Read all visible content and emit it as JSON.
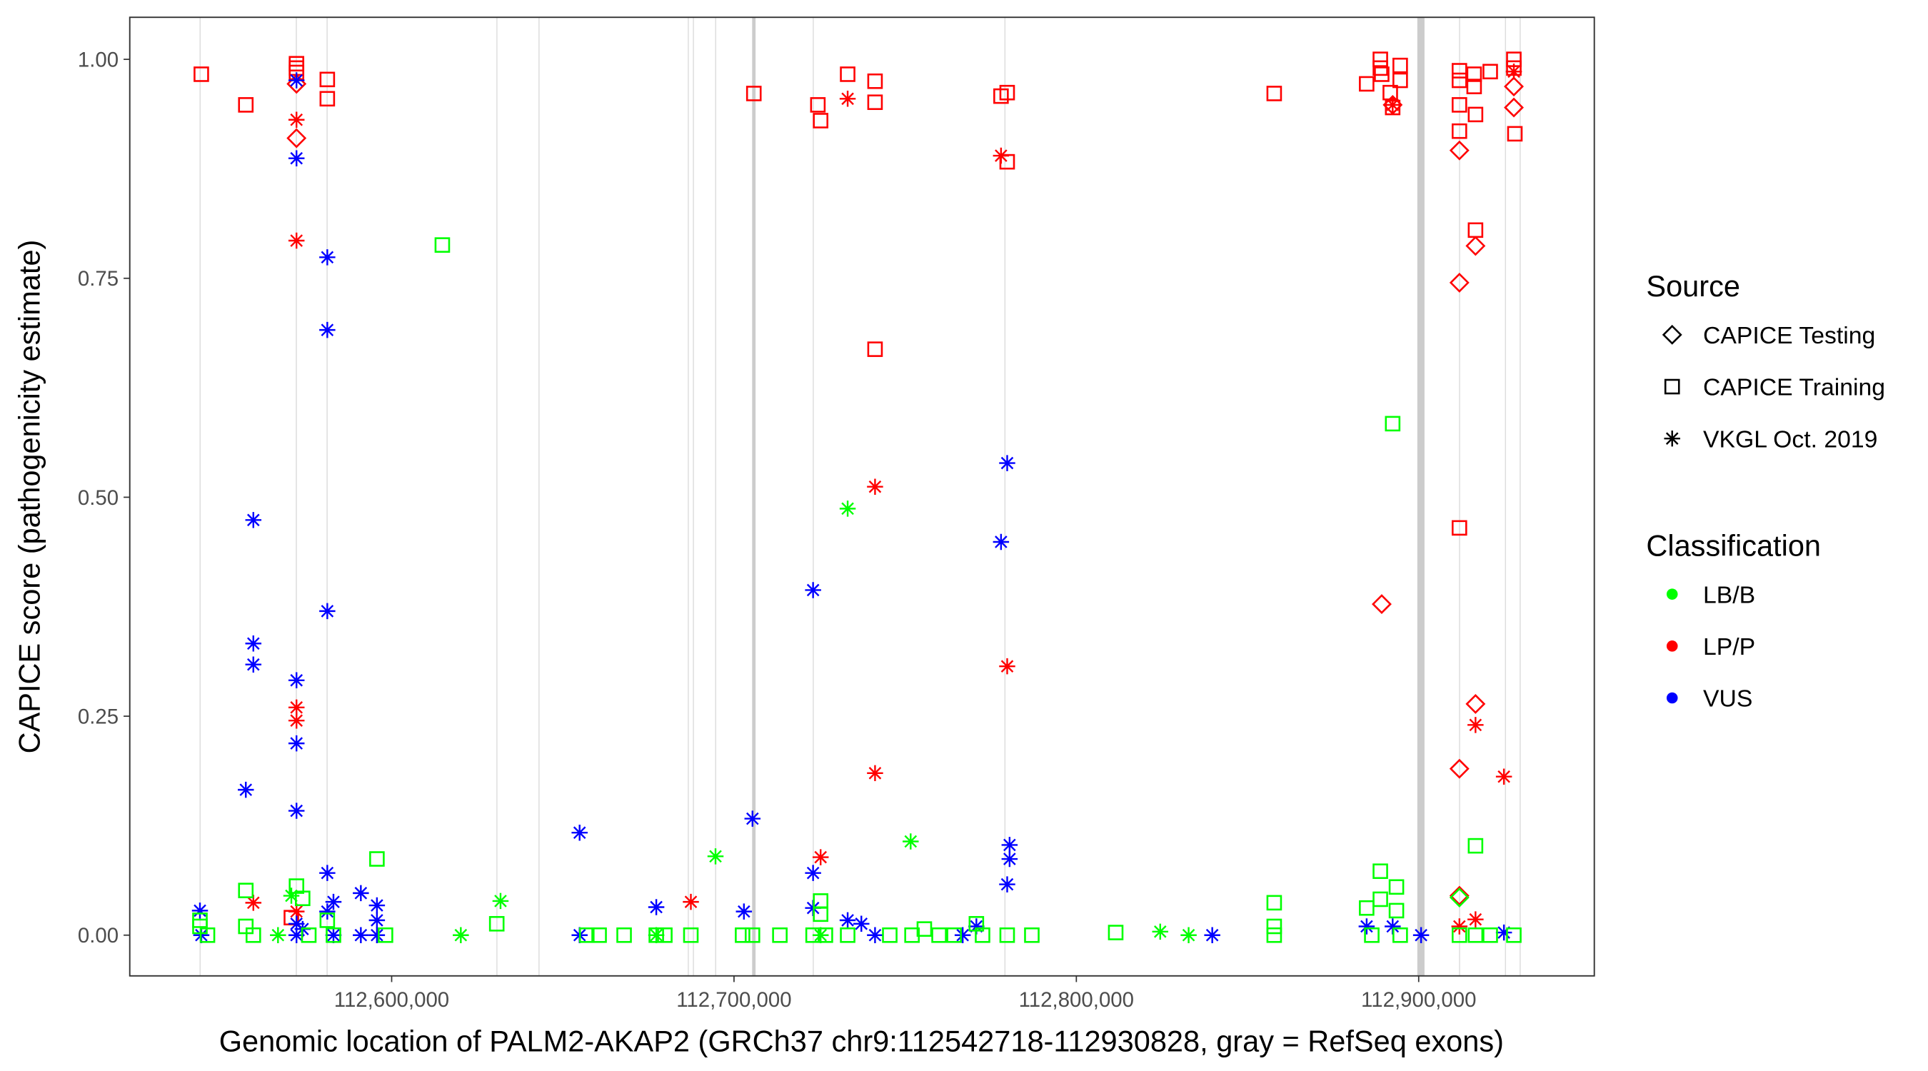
{
  "chart_data": {
    "type": "scatter",
    "xlabel": "Genomic location of PALM2-AKAP2 (GRCh37 chr9:112542718-112930828, gray = RefSeq exons)",
    "ylabel": "CAPICE score (pathogenicity estimate)",
    "xlim": [
      112523500,
      112951300
    ],
    "ylim": [
      -0.0465,
      1.048
    ],
    "x_ticks": [
      112600000,
      112700000,
      112800000,
      112900000
    ],
    "x_tick_labels": [
      "112,600,000",
      "112,700,000",
      "112,800,000",
      "112,900,000"
    ],
    "y_ticks": [
      0,
      0.25,
      0.5,
      0.75,
      1
    ],
    "y_tick_labels": [
      "0.00",
      "0.25",
      "0.50",
      "0.75",
      "1.00"
    ],
    "grid": false,
    "legend_placement": "right",
    "legend": {
      "source_title": "Source",
      "sources": [
        {
          "code": "T",
          "label": "CAPICE Testing",
          "shape": "diamond"
        },
        {
          "code": "R",
          "label": "CAPICE Training",
          "shape": "square"
        },
        {
          "code": "V",
          "label": "VKGL Oct. 2019",
          "shape": "asterisk"
        }
      ],
      "class_title": "Classification",
      "classes": [
        {
          "code": "B",
          "label": "LB/B",
          "color": "#00ff00"
        },
        {
          "code": "P",
          "label": "LP/P",
          "color": "#ff0000"
        },
        {
          "code": "U",
          "label": "VUS",
          "color": "#0000ff"
        }
      ]
    },
    "exons": [
      [
        112543900,
        112544200
      ],
      [
        112572000,
        112572300
      ],
      [
        112581000,
        112581300
      ],
      [
        112630600,
        112630800
      ],
      [
        112642900,
        112643100
      ],
      [
        112686500,
        112686700
      ],
      [
        112688000,
        112688200
      ],
      [
        112694500,
        112694700
      ],
      [
        112705300,
        112706300
      ],
      [
        112723000,
        112723200
      ],
      [
        112779000,
        112779200
      ],
      [
        112899600,
        112901700
      ],
      [
        112911800,
        112912000
      ],
      [
        112925200,
        112925400
      ],
      [
        112929500,
        112929700
      ]
    ],
    "points": [
      [
        112544400,
        0.983,
        "R",
        "P"
      ],
      [
        112557400,
        0.948,
        "R",
        "P"
      ],
      [
        112572200,
        0.99,
        "R",
        "P"
      ],
      [
        112572200,
        0.995,
        "R",
        "P"
      ],
      [
        112572200,
        0.985,
        "R",
        "P"
      ],
      [
        112581200,
        0.977,
        "R",
        "P"
      ],
      [
        112581200,
        0.955,
        "R",
        "P"
      ],
      [
        112705800,
        0.961,
        "R",
        "P"
      ],
      [
        112724500,
        0.948,
        "R",
        "P"
      ],
      [
        112725300,
        0.93,
        "R",
        "P"
      ],
      [
        112733200,
        0.983,
        "R",
        "P"
      ],
      [
        112741200,
        0.975,
        "R",
        "P"
      ],
      [
        112741200,
        0.951,
        "R",
        "P"
      ],
      [
        112741200,
        0.669,
        "R",
        "P"
      ],
      [
        112778000,
        0.958,
        "R",
        "P"
      ],
      [
        112779800,
        0.962,
        "R",
        "P"
      ],
      [
        112779800,
        0.883,
        "R",
        "P"
      ],
      [
        112857800,
        0.961,
        "R",
        "P"
      ],
      [
        112884800,
        0.972,
        "R",
        "P"
      ],
      [
        112888800,
        1.0,
        "R",
        "P"
      ],
      [
        112888800,
        0.99,
        "R",
        "P"
      ],
      [
        112889200,
        0.983,
        "R",
        "P"
      ],
      [
        112891700,
        0.962,
        "R",
        "P"
      ],
      [
        112892400,
        0.945,
        "R",
        "P"
      ],
      [
        112894600,
        0.993,
        "R",
        "P"
      ],
      [
        112894600,
        0.976,
        "R",
        "P"
      ],
      [
        112911900,
        0.987,
        "R",
        "P"
      ],
      [
        112911900,
        0.976,
        "R",
        "P"
      ],
      [
        112911900,
        0.948,
        "R",
        "P"
      ],
      [
        112911900,
        0.918,
        "R",
        "P"
      ],
      [
        112911900,
        0.465,
        "R",
        "P"
      ],
      [
        112916200,
        0.983,
        "R",
        "P"
      ],
      [
        112916200,
        0.969,
        "R",
        "P"
      ],
      [
        112916600,
        0.937,
        "R",
        "P"
      ],
      [
        112916600,
        0.805,
        "R",
        "P"
      ],
      [
        112920900,
        0.986,
        "R",
        "P"
      ],
      [
        112927800,
        1.0,
        "R",
        "P"
      ],
      [
        112927800,
        0.99,
        "R",
        "P"
      ],
      [
        112928100,
        0.915,
        "R",
        "P"
      ],
      [
        112570700,
        0.02,
        "R",
        "P"
      ],
      [
        112572200,
        0.91,
        "T",
        "P"
      ],
      [
        112572200,
        0.972,
        "T",
        "P"
      ],
      [
        112892400,
        0.948,
        "T",
        "P"
      ],
      [
        112889200,
        0.378,
        "T",
        "P"
      ],
      [
        112911900,
        0.896,
        "T",
        "P"
      ],
      [
        112911900,
        0.745,
        "T",
        "P"
      ],
      [
        112916600,
        0.787,
        "T",
        "P"
      ],
      [
        112916600,
        0.264,
        "T",
        "P"
      ],
      [
        112911900,
        0.19,
        "T",
        "P"
      ],
      [
        112911900,
        0.045,
        "T",
        "P"
      ],
      [
        112927800,
        0.945,
        "T",
        "P"
      ],
      [
        112927800,
        0.969,
        "T",
        "P"
      ],
      [
        112559600,
        0.037,
        "V",
        "P"
      ],
      [
        112572200,
        0.931,
        "V",
        "P"
      ],
      [
        112572200,
        0.793,
        "V",
        "P"
      ],
      [
        112572200,
        0.26,
        "V",
        "P"
      ],
      [
        112572200,
        0.245,
        "V",
        "P"
      ],
      [
        112572200,
        0.027,
        "V",
        "P"
      ],
      [
        112725300,
        0.089,
        "V",
        "P"
      ],
      [
        112733200,
        0.955,
        "V",
        "P"
      ],
      [
        112741200,
        0.512,
        "V",
        "P"
      ],
      [
        112741200,
        0.185,
        "V",
        "P"
      ],
      [
        112778000,
        0.89,
        "V",
        "P"
      ],
      [
        112779800,
        0.307,
        "V",
        "P"
      ],
      [
        112687400,
        0.038,
        "V",
        "P"
      ],
      [
        112892400,
        0.948,
        "V",
        "P"
      ],
      [
        112916600,
        0.24,
        "V",
        "P"
      ],
      [
        112916600,
        0.018,
        "V",
        "P"
      ],
      [
        112924900,
        0.181,
        "V",
        "P"
      ],
      [
        112911900,
        0.01,
        "V",
        "P"
      ],
      [
        112927800,
        0.986,
        "V",
        "P"
      ],
      [
        112544000,
        0.028,
        "V",
        "U"
      ],
      [
        112544400,
        0.0,
        "V",
        "U"
      ],
      [
        112557400,
        0.166,
        "V",
        "U"
      ],
      [
        112559600,
        0.474,
        "V",
        "U"
      ],
      [
        112559600,
        0.333,
        "V",
        "U"
      ],
      [
        112559600,
        0.309,
        "V",
        "U"
      ],
      [
        112572200,
        0.976,
        "V",
        "U"
      ],
      [
        112572200,
        0.887,
        "V",
        "U"
      ],
      [
        112572200,
        0.291,
        "V",
        "U"
      ],
      [
        112572200,
        0.219,
        "V",
        "U"
      ],
      [
        112572200,
        0.142,
        "V",
        "U"
      ],
      [
        112572200,
        0.013,
        "V",
        "U"
      ],
      [
        112572200,
        0.0,
        "V",
        "U"
      ],
      [
        112574000,
        0.007,
        "V",
        "U"
      ],
      [
        112581200,
        0.774,
        "V",
        "U"
      ],
      [
        112581200,
        0.691,
        "V",
        "U"
      ],
      [
        112581200,
        0.37,
        "V",
        "U"
      ],
      [
        112581200,
        0.071,
        "V",
        "U"
      ],
      [
        112581200,
        0.027,
        "V",
        "U"
      ],
      [
        112583000,
        0.038,
        "V",
        "U"
      ],
      [
        112583000,
        0.0,
        "V",
        "U"
      ],
      [
        112591000,
        0.048,
        "V",
        "U"
      ],
      [
        112591000,
        0.0,
        "V",
        "U"
      ],
      [
        112595700,
        0.034,
        "V",
        "U"
      ],
      [
        112595700,
        0.017,
        "V",
        "U"
      ],
      [
        112595700,
        0.0,
        "V",
        "U"
      ],
      [
        112654900,
        0.117,
        "V",
        "U"
      ],
      [
        112654900,
        0.0,
        "V",
        "U"
      ],
      [
        112677300,
        0.032,
        "V",
        "U"
      ],
      [
        112702900,
        0.027,
        "V",
        "U"
      ],
      [
        112705400,
        0.133,
        "V",
        "U"
      ],
      [
        112723100,
        0.394,
        "V",
        "U"
      ],
      [
        112723100,
        0.071,
        "V",
        "U"
      ],
      [
        112723100,
        0.031,
        "V",
        "U"
      ],
      [
        112733200,
        0.017,
        "V",
        "U"
      ],
      [
        112737200,
        0.013,
        "V",
        "U"
      ],
      [
        112741200,
        0.0,
        "V",
        "U"
      ],
      [
        112766800,
        0.0,
        "V",
        "U"
      ],
      [
        112770800,
        0.01,
        "V",
        "U"
      ],
      [
        112778000,
        0.449,
        "V",
        "U"
      ],
      [
        112779800,
        0.539,
        "V",
        "U"
      ],
      [
        112779800,
        0.058,
        "V",
        "U"
      ],
      [
        112780500,
        0.103,
        "V",
        "U"
      ],
      [
        112780500,
        0.087,
        "V",
        "U"
      ],
      [
        112839700,
        0.0,
        "V",
        "U"
      ],
      [
        112884800,
        0.01,
        "V",
        "U"
      ],
      [
        112892400,
        0.01,
        "V",
        "U"
      ],
      [
        112900700,
        0.0,
        "V",
        "U"
      ],
      [
        112924900,
        0.003,
        "V",
        "U"
      ],
      [
        112544000,
        0.017,
        "R",
        "B"
      ],
      [
        112544000,
        0.01,
        "R",
        "B"
      ],
      [
        112546200,
        0.0,
        "R",
        "B"
      ],
      [
        112557400,
        0.051,
        "R",
        "B"
      ],
      [
        112557400,
        0.01,
        "R",
        "B"
      ],
      [
        112559600,
        0.0,
        "R",
        "B"
      ],
      [
        112572200,
        0.056,
        "R",
        "B"
      ],
      [
        112574000,
        0.042,
        "R",
        "B"
      ],
      [
        112575800,
        0.0,
        "R",
        "B"
      ],
      [
        112581200,
        0.017,
        "R",
        "B"
      ],
      [
        112583000,
        0.0,
        "R",
        "B"
      ],
      [
        112595700,
        0.087,
        "R",
        "B"
      ],
      [
        112598200,
        0.0,
        "R",
        "B"
      ],
      [
        112614800,
        0.788,
        "R",
        "B"
      ],
      [
        112630700,
        0.013,
        "R",
        "B"
      ],
      [
        112657000,
        0.0,
        "R",
        "B"
      ],
      [
        112660600,
        0.0,
        "R",
        "B"
      ],
      [
        112667900,
        0.0,
        "R",
        "B"
      ],
      [
        112677300,
        0.0,
        "R",
        "B"
      ],
      [
        112679800,
        0.0,
        "R",
        "B"
      ],
      [
        112687400,
        0.0,
        "R",
        "B"
      ],
      [
        112702500,
        0.0,
        "R",
        "B"
      ],
      [
        112705400,
        0.0,
        "R",
        "B"
      ],
      [
        112713400,
        0.0,
        "R",
        "B"
      ],
      [
        112723100,
        0.0,
        "R",
        "B"
      ],
      [
        112725300,
        0.039,
        "R",
        "B"
      ],
      [
        112725300,
        0.024,
        "R",
        "B"
      ],
      [
        112726700,
        0.0,
        "R",
        "B"
      ],
      [
        112733200,
        0.0,
        "R",
        "B"
      ],
      [
        112745500,
        0.0,
        "R",
        "B"
      ],
      [
        112752000,
        0.0,
        "R",
        "B"
      ],
      [
        112755600,
        0.007,
        "R",
        "B"
      ],
      [
        112759900,
        0.0,
        "R",
        "B"
      ],
      [
        112764300,
        0.0,
        "R",
        "B"
      ],
      [
        112770800,
        0.013,
        "R",
        "B"
      ],
      [
        112772600,
        0.0,
        "R",
        "B"
      ],
      [
        112779800,
        0.0,
        "R",
        "B"
      ],
      [
        112787000,
        0.0,
        "R",
        "B"
      ],
      [
        112811500,
        0.003,
        "R",
        "B"
      ],
      [
        112857800,
        0.037,
        "R",
        "B"
      ],
      [
        112857800,
        0.01,
        "R",
        "B"
      ],
      [
        112857800,
        0.0,
        "R",
        "B"
      ],
      [
        112884800,
        0.031,
        "R",
        "B"
      ],
      [
        112888800,
        0.073,
        "R",
        "B"
      ],
      [
        112888800,
        0.041,
        "R",
        "B"
      ],
      [
        112892400,
        0.584,
        "R",
        "B"
      ],
      [
        112893500,
        0.055,
        "R",
        "B"
      ],
      [
        112893500,
        0.028,
        "R",
        "B"
      ],
      [
        112886300,
        0.0,
        "R",
        "B"
      ],
      [
        112894600,
        0.0,
        "R",
        "B"
      ],
      [
        112916600,
        0.102,
        "R",
        "B"
      ],
      [
        112911900,
        0.0,
        "R",
        "B"
      ],
      [
        112916600,
        0.0,
        "R",
        "B"
      ],
      [
        112920900,
        0.0,
        "R",
        "B"
      ],
      [
        112927800,
        0.0,
        "R",
        "B"
      ],
      [
        112570700,
        0.045,
        "V",
        "B"
      ],
      [
        112566800,
        0.0,
        "V",
        "B"
      ],
      [
        112620200,
        0.0,
        "V",
        "B"
      ],
      [
        112631800,
        0.039,
        "V",
        "B"
      ],
      [
        112694600,
        0.09,
        "V",
        "B"
      ],
      [
        112733200,
        0.487,
        "V",
        "B"
      ],
      [
        112751600,
        0.107,
        "V",
        "B"
      ],
      [
        112725300,
        0.0,
        "V",
        "B"
      ],
      [
        112824500,
        0.004,
        "V",
        "B"
      ],
      [
        112832800,
        0.0,
        "V",
        "B"
      ],
      [
        112677300,
        0.0,
        "V",
        "B"
      ],
      [
        112911900,
        0.043,
        "T",
        "B"
      ]
    ]
  }
}
